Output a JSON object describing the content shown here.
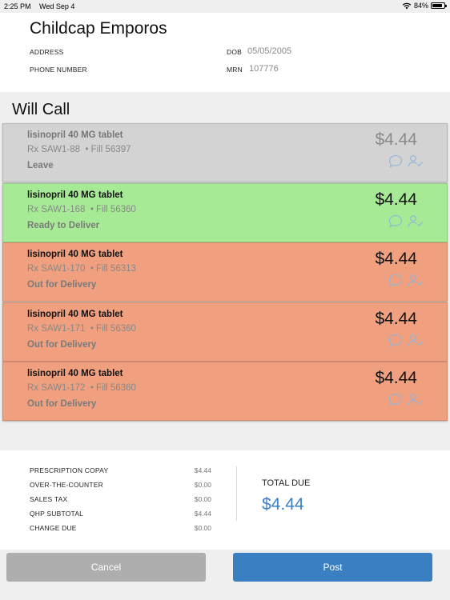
{
  "status_bar": {
    "time": "2:25 PM",
    "date": "Wed Sep 4",
    "battery": "84%",
    "battery_level": 0.84
  },
  "patient": {
    "name": "Childcap Emporos",
    "address_label": "ADDRESS",
    "phone_label": "PHONE NUMBER",
    "dob_label": "DOB",
    "dob": "05/05/2005",
    "mrn_label": "MRN",
    "mrn": "107776"
  },
  "section_title": "Will Call",
  "prescriptions": [
    {
      "drug": "lisinopril 40 MG tablet",
      "rx": "Rx  SAW1-88",
      "fill": "• Fill  56397",
      "status": "Leave",
      "price": "$4.44",
      "color": "#d3d3d3",
      "state": "gray"
    },
    {
      "drug": "lisinopril 40 MG tablet",
      "rx": "Rx  SAW1-168",
      "fill": "• Fill  56360",
      "status": "Ready to Deliver",
      "price": "$4.44",
      "color": "#a6ea96",
      "state": "green"
    },
    {
      "drug": "lisinopril 40 MG tablet",
      "rx": "Rx  SAW1-170",
      "fill": "• Fill  56313",
      "status": "Out for Delivery",
      "price": "$4.44",
      "color": "#f0a07f",
      "state": "orange"
    },
    {
      "drug": "lisinopril 40 MG tablet",
      "rx": "Rx  SAW1-171",
      "fill": "• Fill  56360",
      "status": "Out for Delivery",
      "price": "$4.44",
      "color": "#f0a07f",
      "state": "orange"
    },
    {
      "drug": "lisinopril 40 MG tablet",
      "rx": "Rx  SAW1-172",
      "fill": "• Fill  56360",
      "status": "Out for Delivery",
      "price": "$4.44",
      "color": "#f0a07f",
      "state": "orange"
    }
  ],
  "summary": {
    "rows": [
      {
        "label": "PRESCRIPTION COPAY",
        "value": "$4.44"
      },
      {
        "label": "OVER-THE-COUNTER",
        "value": "$0.00"
      },
      {
        "label": "SALES TAX",
        "value": "$0.00"
      },
      {
        "label": "QHP SUBTOTAL",
        "value": "$4.44"
      },
      {
        "label": "CHANGE DUE",
        "value": "$0.00"
      }
    ],
    "total_label": "TOTAL DUE",
    "total_value": "$4.44"
  },
  "buttons": {
    "cancel": "Cancel",
    "post": "Post"
  },
  "colors": {
    "accent": "#3a7fc1",
    "cancel": "#aeaeae"
  },
  "icons": [
    "wifi-icon",
    "battery-icon",
    "comment-icon",
    "user-check-icon"
  ]
}
